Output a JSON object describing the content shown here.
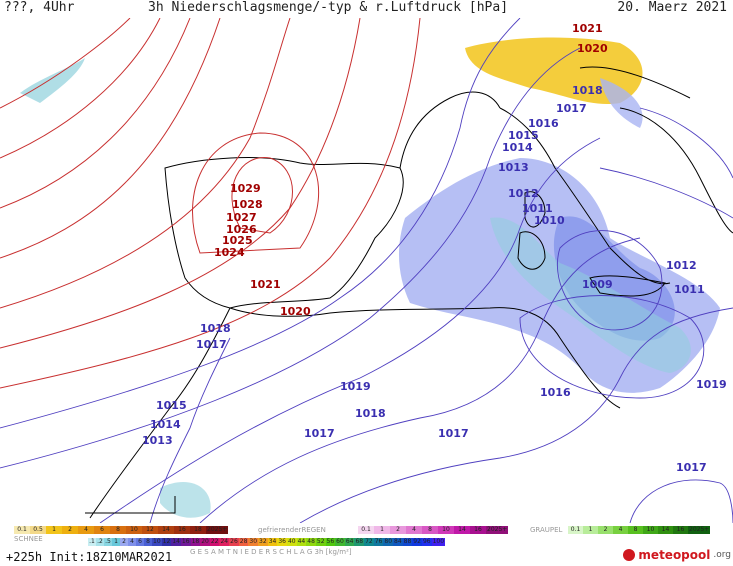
{
  "header": {
    "left": "???, 4Uhr",
    "title": "3h Niederschlagsmenge/-typ & r.Luftdruck [hPa]",
    "date": "20. Maerz 2021"
  },
  "isobars_high": [
    "1029",
    "1028",
    "1027",
    "1026",
    "1025",
    "1024"
  ],
  "isobars": [
    {
      "label": "1021",
      "kind": "hi"
    },
    {
      "label": "1020",
      "kind": "hi"
    },
    {
      "label": "1018",
      "kind": "lo"
    },
    {
      "label": "1017",
      "kind": "lo"
    },
    {
      "label": "1016",
      "kind": "lo"
    },
    {
      "label": "1015",
      "kind": "lo"
    },
    {
      "label": "1014",
      "kind": "lo"
    },
    {
      "label": "1013",
      "kind": "lo"
    },
    {
      "label": "1012",
      "kind": "lo"
    },
    {
      "label": "1011",
      "kind": "lo"
    },
    {
      "label": "1010",
      "kind": "lo"
    },
    {
      "label": "1019",
      "kind": "lo"
    },
    {
      "label": "1009",
      "kind": "lo"
    },
    {
      "label": "1021",
      "kind": "lo"
    },
    {
      "label": "1020",
      "kind": "lo"
    },
    {
      "label": "1018",
      "kind": "lo"
    },
    {
      "label": "1017",
      "kind": "lo"
    },
    {
      "label": "1015",
      "kind": "lo"
    },
    {
      "label": "1014",
      "kind": "lo"
    },
    {
      "label": "1013",
      "kind": "lo"
    },
    {
      "label": "1019",
      "kind": "lo"
    },
    {
      "label": "1018",
      "kind": "lo"
    },
    {
      "label": "1017",
      "kind": "lo"
    },
    {
      "label": "1017",
      "kind": "lo"
    },
    {
      "label": "1016",
      "kind": "lo"
    },
    {
      "label": "1017",
      "kind": "lo"
    },
    {
      "label": "1012",
      "kind": "lo"
    },
    {
      "label": "1011",
      "kind": "lo"
    }
  ],
  "legend": {
    "rain_values": [
      "0.1",
      "0.5",
      "1",
      "2",
      "4",
      "6",
      "8",
      "10",
      "12",
      "14",
      "16",
      "18",
      "2025+"
    ],
    "freezing_label": "gefrierenderREGEN",
    "freezing_values": [
      "0.1",
      "1",
      "2",
      "4",
      "8",
      "10",
      "14",
      "16",
      "2025+"
    ],
    "graupel_label": "GRAUPEL",
    "graupel_values": [
      "0.1",
      "1",
      "2",
      "4",
      "8",
      "10",
      "14",
      "16",
      "2025+"
    ],
    "snow_label": "SCHNEE",
    "snow_values": [
      ".1",
      ".2",
      ".5",
      "1",
      "2",
      "4",
      "6",
      "8",
      "10",
      "12",
      "14",
      "16",
      "18",
      "20",
      "22",
      "24",
      "26",
      "28",
      "30",
      "32",
      "34",
      "36",
      "40",
      "44",
      "48",
      "52",
      "56",
      "60",
      "64",
      "68",
      "72",
      "76",
      "80",
      "84",
      "88",
      "92",
      "96",
      "100"
    ],
    "total_label": "G E S A M T N I E D E R S C H L A G   3h  [kg/m²]"
  },
  "footer": {
    "run": "+225h  Init:18Z10MAR2021",
    "logo": "meteopool",
    "logo_tld": ".org"
  },
  "colors": {
    "high_isobar": "#c83030",
    "low_isobar": "#5040c0",
    "rain_light": "#9aa8f0",
    "snow_teal": "#7fd0d8",
    "yellow_precip": "#f2c41a"
  }
}
